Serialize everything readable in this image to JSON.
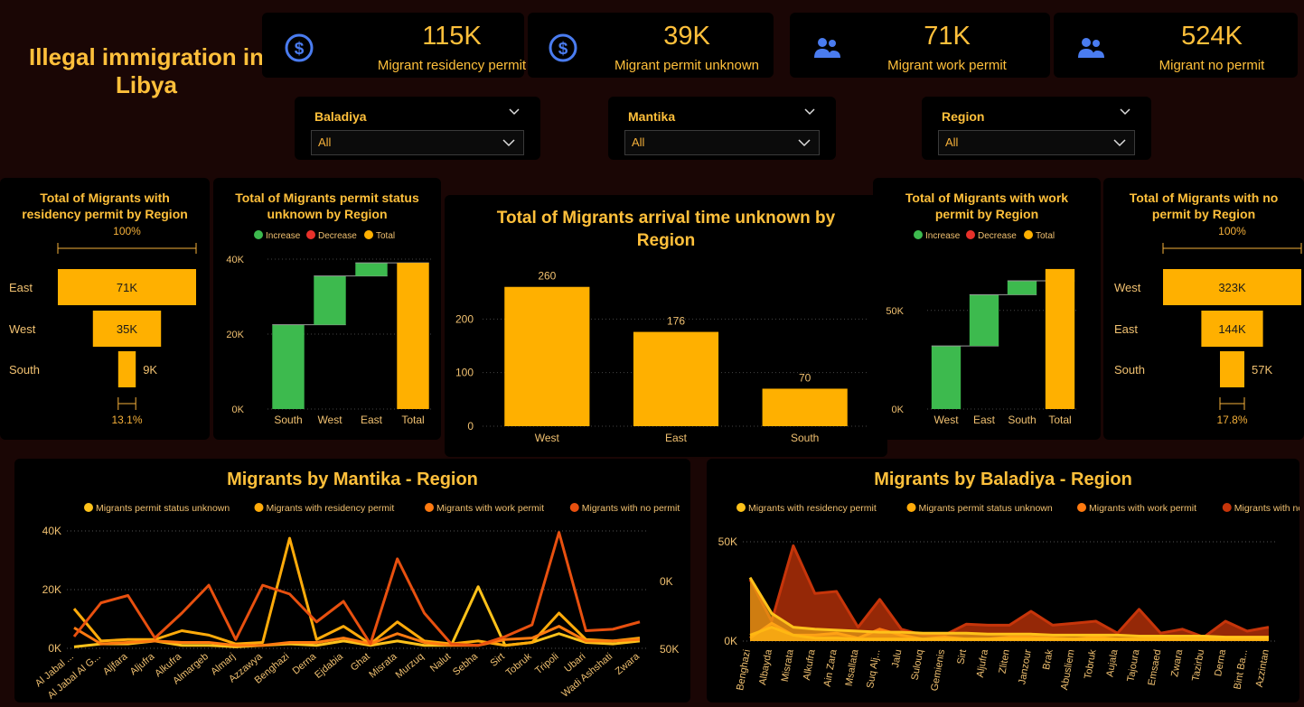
{
  "title": "Illegal immigration in Libya",
  "kpis": [
    {
      "value": "115K",
      "label": "Migrant residency permit",
      "icon": "dollar-icon"
    },
    {
      "value": "39K",
      "label": "Migrant permit unknown",
      "icon": "dollar-icon"
    },
    {
      "value": "71K",
      "label": "Migrant work permit",
      "icon": "people-icon"
    },
    {
      "value": "524K",
      "label": "Migrant no permit",
      "icon": "people-icon"
    }
  ],
  "filters": [
    {
      "label": "Baladiya",
      "value": "All"
    },
    {
      "label": "Mantika",
      "value": "All"
    },
    {
      "label": "Region",
      "value": "All"
    }
  ],
  "colors": {
    "accent": "#ffb000",
    "increase": "#3dba4e",
    "decrease": "#e8312a",
    "total": "#ffb000"
  },
  "legend_waterfall": [
    "Increase",
    "Decrease",
    "Total"
  ],
  "chart_data": [
    {
      "id": "funnel_residency",
      "type": "bar",
      "title": "Total of Migrants with residency permit by Region",
      "categories": [
        "East",
        "West",
        "South"
      ],
      "values": [
        71000,
        35000,
        9000
      ],
      "data_labels": [
        "71K",
        "35K",
        "9K"
      ],
      "top_label": "100%",
      "bottom_label": "13.1%"
    },
    {
      "id": "waterfall_unknown",
      "type": "bar",
      "title": "Total of Migrants permit status unknown by Region",
      "categories": [
        "South",
        "West",
        "East",
        "Total"
      ],
      "values": [
        22500,
        13000,
        3500,
        39000
      ],
      "y_ticks": [
        "0K",
        "20K",
        "40K"
      ],
      "ylim": [
        0,
        40000
      ]
    },
    {
      "id": "arrival_unknown",
      "type": "bar",
      "title": "Total of Migrants arrival time unknown by Region",
      "categories": [
        "West",
        "East",
        "South"
      ],
      "values": [
        260,
        176,
        70
      ],
      "data_labels": [
        "260",
        "176",
        "70"
      ],
      "y_ticks": [
        "0",
        "100",
        "200"
      ],
      "ylim": [
        0,
        300
      ]
    },
    {
      "id": "waterfall_work",
      "type": "bar",
      "title": "Total of Migrants with work permit by Region",
      "categories": [
        "West",
        "East",
        "South",
        "Total"
      ],
      "values": [
        32000,
        26000,
        7000,
        71000
      ],
      "y_ticks": [
        "0K",
        "50K"
      ],
      "ylim": [
        0,
        76000
      ]
    },
    {
      "id": "funnel_nopermit",
      "type": "bar",
      "title": "Total of Migrants with no permit by Region",
      "categories": [
        "West",
        "East",
        "South"
      ],
      "values": [
        323000,
        144000,
        57000
      ],
      "data_labels": [
        "323K",
        "144K",
        "57K"
      ],
      "top_label": "100%",
      "bottom_label": "17.8%"
    },
    {
      "id": "mantika_lines",
      "type": "line",
      "title": "Migrants by Mantika - Region",
      "categories": [
        "Al Jabal ...",
        "Al Jabal Al G...",
        "Aljfara",
        "Aljufra",
        "Alkufra",
        "Almargeb",
        "Almarj",
        "Azzawya",
        "Benghazi",
        "Derna",
        "Ejdabia",
        "Ghat",
        "Misrata",
        "Murzuq",
        "Nalut",
        "Sebha",
        "Sirt",
        "Tobruk",
        "Tripoli",
        "Ubari",
        "Wadi Ashshati",
        "Zwara"
      ],
      "y_ticks": [
        "0K",
        "20K",
        "40K"
      ],
      "y2_ticks": [
        "0K",
        "50K"
      ],
      "ylim": [
        0,
        40000
      ],
      "series": [
        {
          "name": "Migrants permit status unknown",
          "color": "#ffc21a",
          "values": [
            500,
            1500,
            1500,
            2500,
            1000,
            1000,
            500,
            1000,
            1500,
            1000,
            2500,
            1000,
            2500,
            1000,
            1000,
            21000,
            1000,
            2000,
            5000,
            2000,
            1500,
            2500
          ]
        },
        {
          "name": "Migrants with residency permit",
          "color": "#ffab0a",
          "values": [
            13500,
            2500,
            3000,
            3000,
            6000,
            4500,
            1500,
            2000,
            37500,
            3000,
            7500,
            1500,
            9000,
            2500,
            1500,
            2500,
            1000,
            2000,
            12000,
            3000,
            2500,
            3500
          ]
        },
        {
          "name": "Migrants with work permit",
          "color": "#ff7a10",
          "values": [
            7000,
            1500,
            2000,
            2500,
            2000,
            2000,
            1000,
            1000,
            2000,
            2000,
            3500,
            1500,
            5000,
            2000,
            1000,
            1000,
            3000,
            3500,
            7500,
            2500,
            2500,
            3000
          ]
        },
        {
          "name": "Migrants with no permit",
          "color": "#e8500f",
          "values": [
            4000,
            15500,
            18000,
            3500,
            12000,
            21500,
            3000,
            21500,
            18500,
            9000,
            16000,
            1500,
            30500,
            12000,
            1500,
            1000,
            4000,
            8000,
            39500,
            6000,
            6500,
            9000
          ]
        }
      ]
    },
    {
      "id": "baladiya_area",
      "type": "area",
      "title": "Migrants by Baladiya - Region",
      "categories": [
        "Benghazi",
        "Albayda",
        "Misrata",
        "Alkufra",
        "Ain Zara",
        "Msallata",
        "Suq Alj...",
        "Jalu",
        "Sulouq",
        "Gemienis",
        "Sirt",
        "Aljufra",
        "Zliten",
        "Janzour",
        "Brak",
        "Abusliem",
        "Tobruk",
        "Aujala",
        "Tajoura",
        "Emsaed",
        "Zwara",
        "Tazirbu",
        "Derna",
        "Bint Ba...",
        "Azzintan"
      ],
      "y_ticks": [
        "0K",
        "50K"
      ],
      "ylim": [
        0,
        60000
      ],
      "series": [
        {
          "name": "Migrants with residency permit",
          "color": "#ffc21a",
          "values": [
            32000,
            14000,
            7000,
            6000,
            5500,
            5000,
            4500,
            4500,
            4000,
            4000,
            4000,
            3500,
            3500,
            3500,
            3000,
            3000,
            3000,
            3000,
            2500,
            2500,
            2500,
            2500,
            2000,
            2000,
            2000
          ]
        },
        {
          "name": "Migrants permit status unknown",
          "color": "#ffab0a",
          "values": [
            3000,
            7000,
            3000,
            1500,
            1500,
            1000,
            1000,
            1000,
            1000,
            1000,
            1000,
            1000,
            1000,
            1000,
            1000,
            1000,
            1000,
            1000,
            1000,
            1000,
            1000,
            1000,
            1000,
            1000,
            1000
          ]
        },
        {
          "name": "Migrants with work permit",
          "color": "#ff7a10",
          "values": [
            1500,
            9000,
            3000,
            3000,
            4000,
            1500,
            6000,
            3000,
            1000,
            2000,
            1000,
            1000,
            2000,
            2000,
            1500,
            1000,
            2000,
            1000,
            1000,
            1500,
            1000,
            1000,
            1500,
            1000,
            1000
          ]
        },
        {
          "name": "Migrants with no permit",
          "color": "#c7350a",
          "values": [
            31000,
            10000,
            48000,
            24000,
            25000,
            7000,
            21000,
            6000,
            3000,
            3000,
            8500,
            8000,
            8000,
            15000,
            8000,
            9000,
            10000,
            4000,
            16000,
            4000,
            6000,
            2000,
            10000,
            5000,
            7000
          ]
        }
      ]
    }
  ]
}
